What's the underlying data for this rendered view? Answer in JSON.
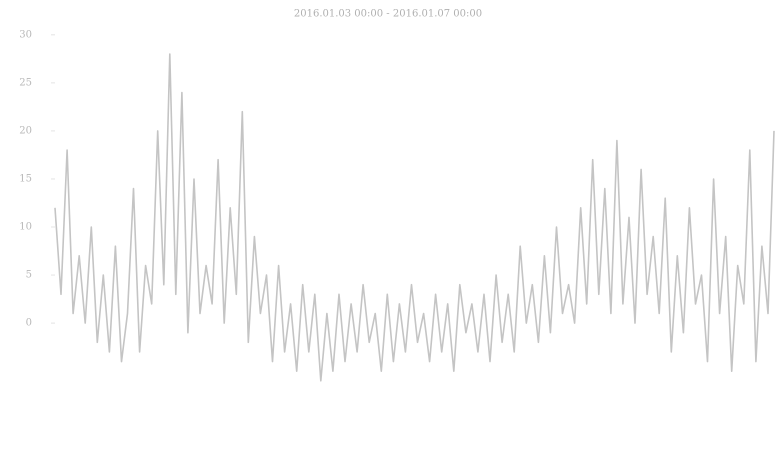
{
  "chart_data": {
    "type": "line",
    "title": "2016.01.03 00:00 - 2016.01.07 00:00",
    "color": "#c4c4c4",
    "values": [
      12,
      3,
      18,
      1,
      7,
      0,
      10,
      -2,
      5,
      -3,
      8,
      -4,
      1,
      14,
      -3,
      6,
      2,
      20,
      4,
      28,
      3,
      24,
      -1,
      15,
      1,
      6,
      2,
      17,
      0,
      12,
      3,
      22,
      -2,
      9,
      1,
      5,
      -4,
      6,
      -3,
      2,
      -5,
      4,
      -3,
      3,
      -6,
      1,
      -5,
      3,
      -4,
      2,
      -3,
      4,
      -2,
      1,
      -5,
      3,
      -4,
      2,
      -3,
      4,
      -2,
      1,
      -4,
      3,
      -3,
      2,
      -5,
      4,
      -1,
      2,
      -3,
      3,
      -4,
      5,
      -2,
      3,
      -3,
      8,
      0,
      4,
      -2,
      7,
      -1,
      10,
      1,
      4,
      0,
      12,
      2,
      17,
      3,
      14,
      1,
      19,
      2,
      11,
      0,
      16,
      3,
      9,
      1,
      13,
      -3,
      7,
      -1,
      12,
      2,
      5,
      -4,
      15,
      1,
      9,
      -5,
      6,
      2,
      18,
      -4,
      8,
      1,
      20
    ],
    "ylim": [
      -8,
      30.5
    ],
    "yticks": [
      0,
      5,
      10,
      15,
      20,
      25,
      30
    ],
    "grid": false
  }
}
